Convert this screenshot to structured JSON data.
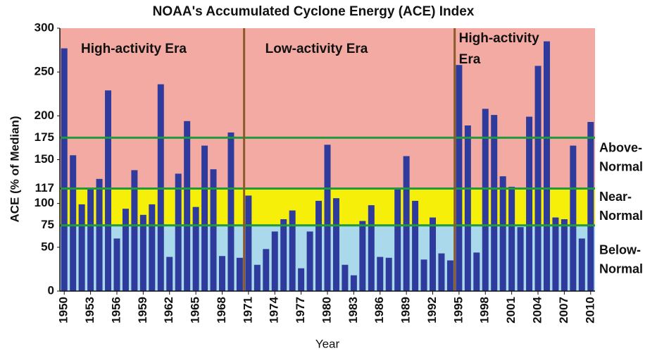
{
  "chart_data": {
    "type": "bar",
    "title": "NOAA's Accumulated Cyclone Energy (ACE) Index",
    "xlabel": "Year",
    "ylabel": "ACE (% of Median)",
    "categories": [
      "1950",
      null,
      null,
      "1953",
      null,
      null,
      "1956",
      null,
      null,
      "1959",
      null,
      null,
      "1962",
      null,
      null,
      "1965",
      null,
      null,
      "1968",
      null,
      null,
      "1971",
      null,
      null,
      "1974",
      null,
      null,
      "1977",
      null,
      null,
      "1980",
      null,
      null,
      "1983",
      null,
      null,
      "1986",
      null,
      null,
      "1989",
      null,
      null,
      "1992",
      null,
      null,
      "1995",
      null,
      null,
      "1998",
      null,
      null,
      "2001",
      null,
      null,
      "2004",
      null,
      null,
      "2007",
      null,
      null,
      "2010"
    ],
    "values": [
      277,
      155,
      99,
      118,
      128,
      229,
      60,
      94,
      138,
      87,
      99,
      236,
      39,
      134,
      194,
      96,
      166,
      139,
      40,
      181,
      38,
      109,
      30,
      48,
      68,
      82,
      92,
      26,
      68,
      103,
      167,
      106,
      30,
      18,
      80,
      98,
      39,
      38,
      117,
      154,
      103,
      36,
      84,
      43,
      35,
      258,
      189,
      44,
      208,
      201,
      131,
      119,
      73,
      199,
      257,
      285,
      84,
      82,
      166,
      60,
      193
    ],
    "color": "#2e3a9c",
    "ylim": [
      0,
      300
    ],
    "yticks": [
      0,
      50,
      100,
      150,
      200,
      250,
      300
    ],
    "threshold_lines": {
      "values": [
        75,
        117,
        175
      ],
      "color": "#1f9a3c"
    },
    "bands": [
      {
        "from": 0,
        "to": 75,
        "color": "#a9d9ea",
        "label": [
          "Below-",
          "Normal"
        ]
      },
      {
        "from": 75,
        "to": 117,
        "color": "#f6ef0a",
        "label": [
          "Near-",
          "Normal"
        ]
      },
      {
        "from": 117,
        "to": 300,
        "color": "#f2aaa2",
        "label": [
          "Above-",
          "Normal"
        ]
      }
    ],
    "eras": [
      {
        "from": 1950,
        "to": 1970,
        "label": [
          "High-activity Era"
        ]
      },
      {
        "from": 1971,
        "to": 1994,
        "label": [
          "Low-activity Era"
        ]
      },
      {
        "from": 1995,
        "to": 2010,
        "label": [
          "High-activity",
          "Era"
        ]
      }
    ],
    "divider_color": "#8b5a2b",
    "highlight_category": "2010",
    "highlight_color": "#d42020"
  }
}
